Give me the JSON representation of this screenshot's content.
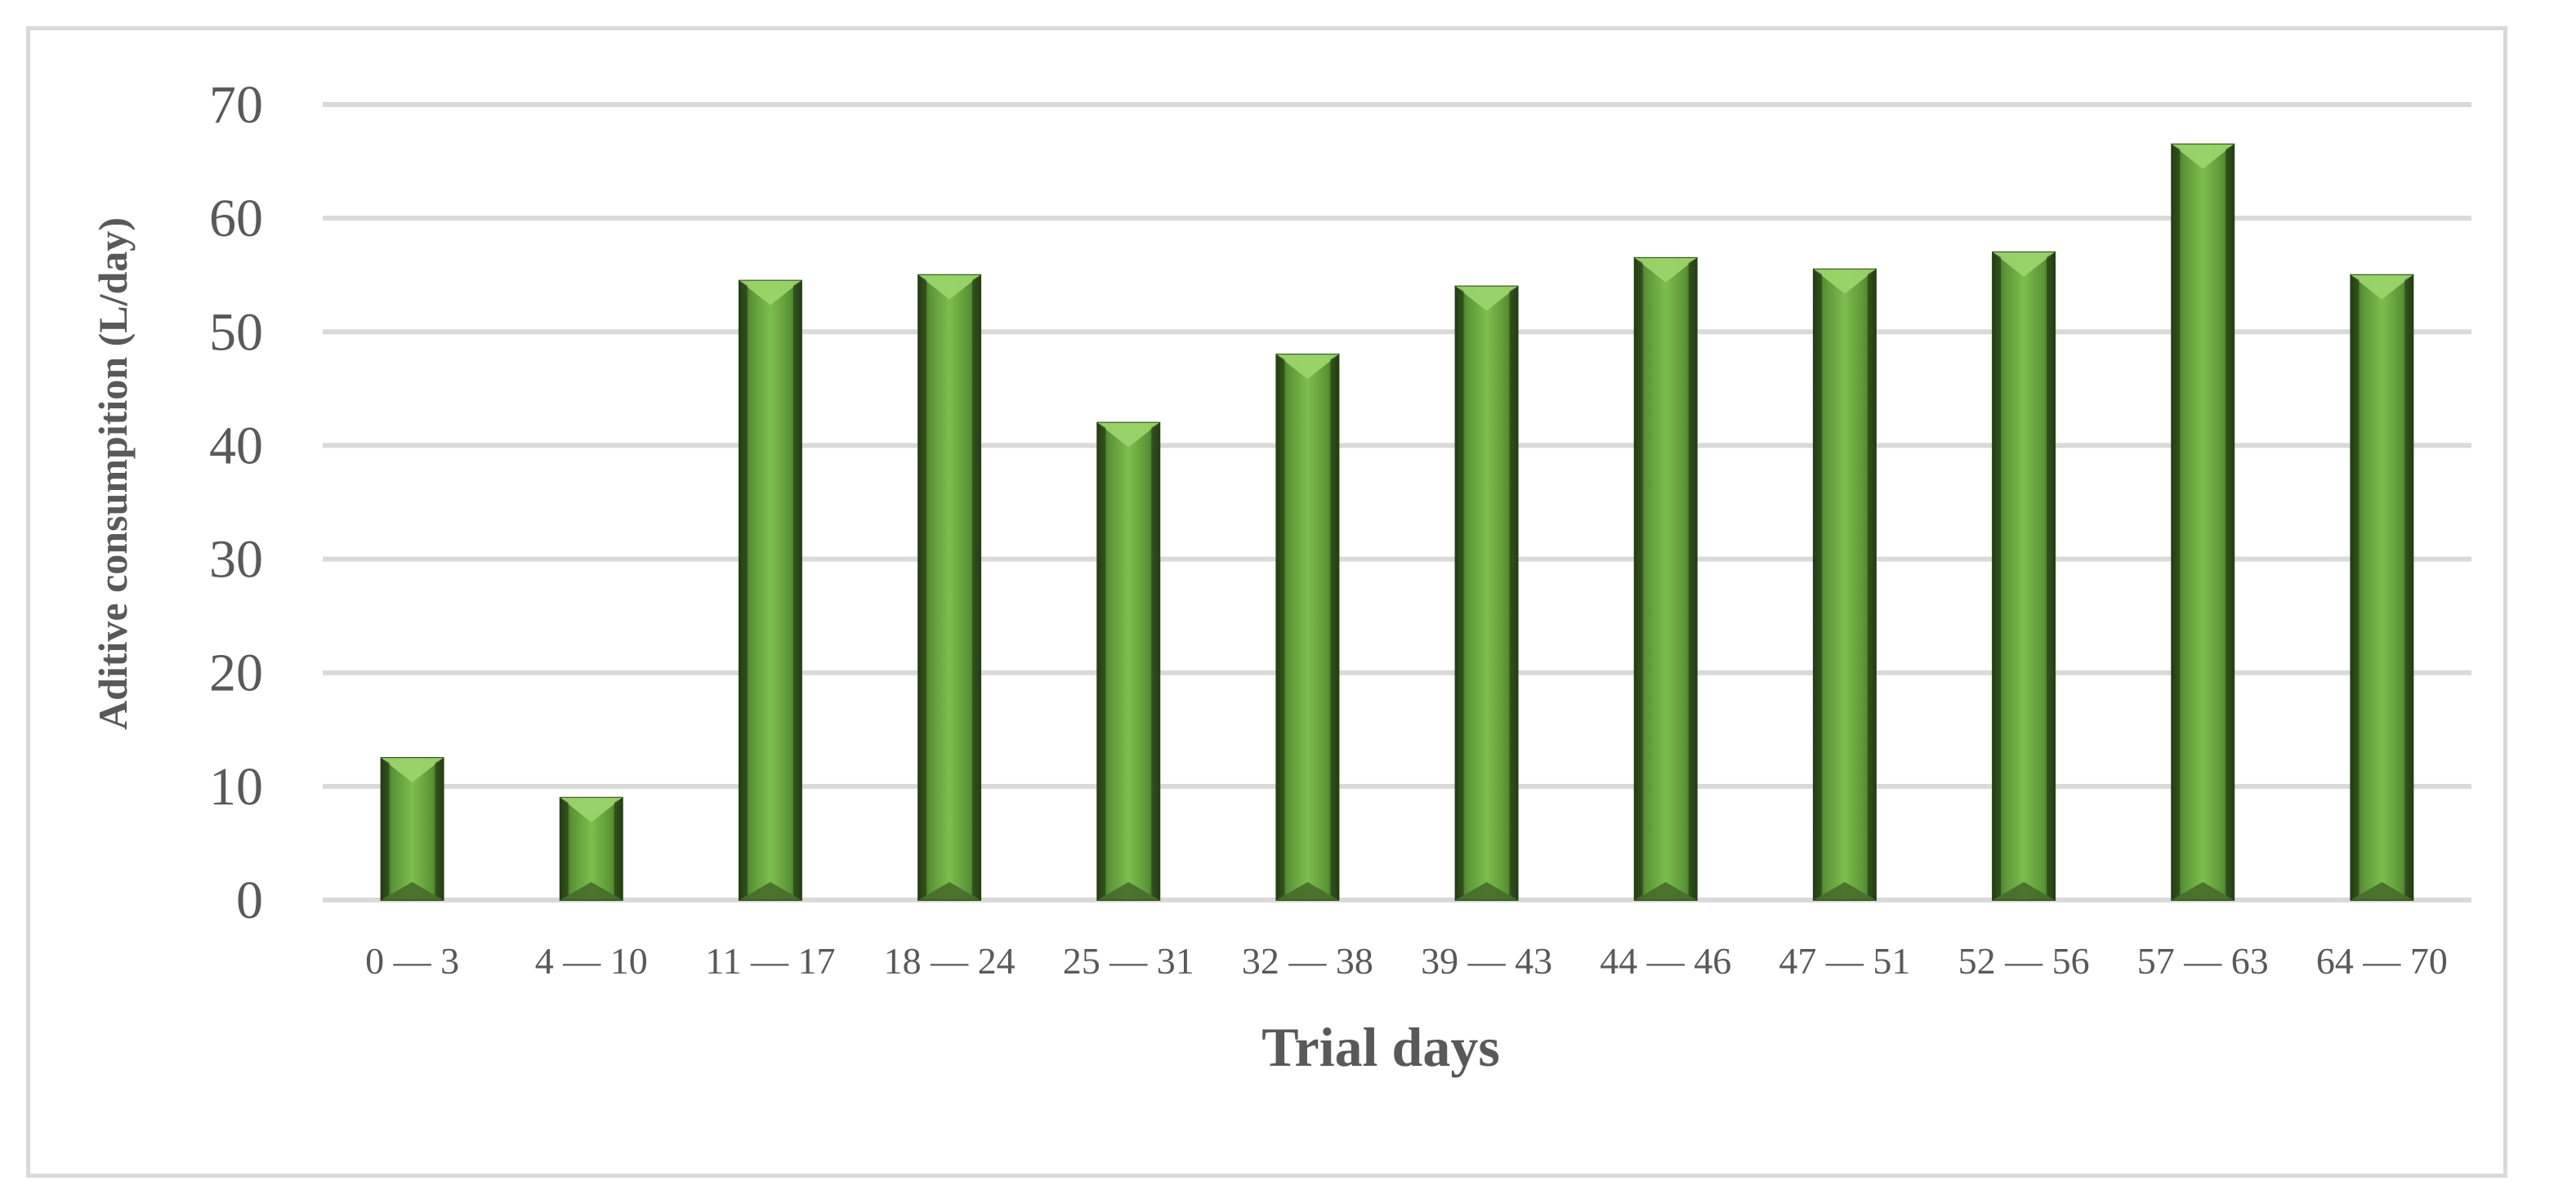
{
  "chart_data": {
    "type": "bar",
    "title": "",
    "xlabel": "Trial days",
    "ylabel": "Aditive consumpition (L/day)",
    "categories": [
      "0 — 3",
      "4 — 10",
      "11 — 17",
      "18 — 24",
      "25 — 31",
      "32 — 38",
      "39 — 43",
      "44 — 46",
      "47 — 51",
      "52 — 56",
      "57 — 63",
      "64 — 70"
    ],
    "values": [
      12.5,
      9,
      54.5,
      55,
      42,
      48,
      54,
      56.5,
      55.5,
      57,
      66.5,
      55
    ],
    "ylim": [
      0,
      70
    ],
    "yticks": [
      "0",
      "10",
      "20",
      "30",
      "40",
      "50",
      "60",
      "70"
    ],
    "ytick_values": [
      0,
      10,
      20,
      30,
      40,
      50,
      60,
      70
    ],
    "grid": true,
    "legend": "none",
    "colors": {
      "bar_face": "#70ad47",
      "bar_light": "#8fce5a",
      "bar_dark": "#375623",
      "gridline": "#d9d9d9",
      "text": "#595959",
      "frame": "#d9d9d9"
    }
  }
}
